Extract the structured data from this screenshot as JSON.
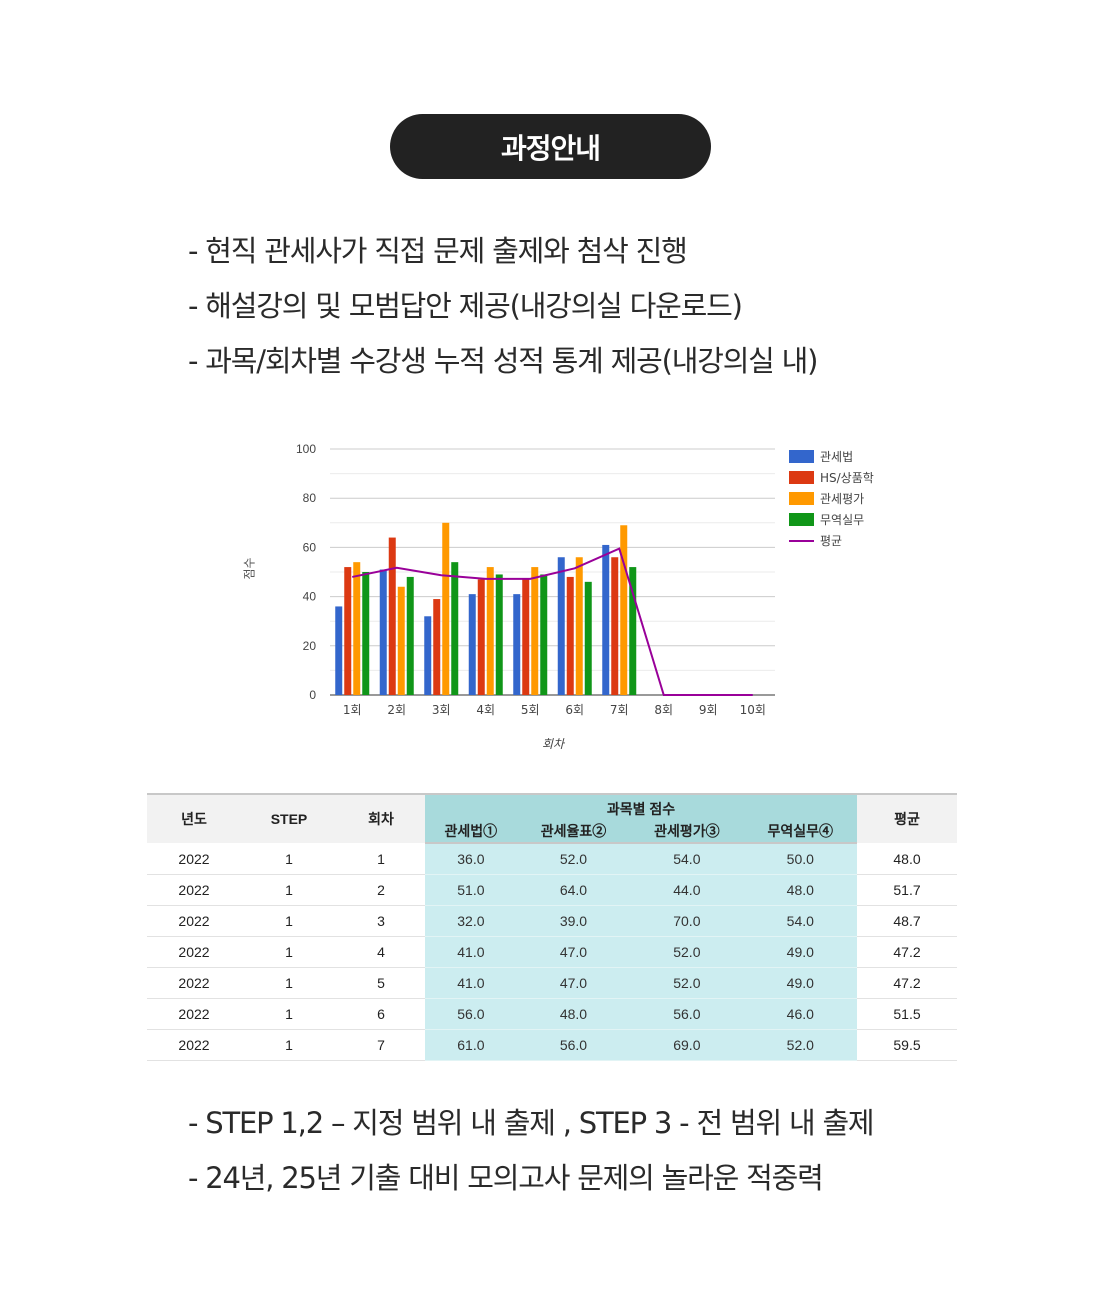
{
  "header": {
    "title": "과정안내"
  },
  "intro_bullets": [
    "- 현직 관세사가 직접 문제 출제와 첨삭 진행",
    "- 해설강의 및 모범답안 제공(내강의실 다운로드)",
    "- 과목/회차별 수강생 누적 성적 통계 제공(내강의실 내)"
  ],
  "chart_data": {
    "type": "bar",
    "title": "",
    "xlabel": "회차",
    "ylabel": "점수",
    "ylim": [
      0,
      100
    ],
    "yticks": [
      0,
      20,
      40,
      60,
      80,
      100
    ],
    "grid": true,
    "legend_position": "right",
    "categories": [
      "1회",
      "2회",
      "3회",
      "4회",
      "5회",
      "6회",
      "7회",
      "8회",
      "9회",
      "10회"
    ],
    "series": [
      {
        "name": "관세법",
        "type": "bar",
        "color": "#3366cc",
        "values": [
          36,
          51,
          32,
          41,
          41,
          56,
          61,
          0,
          0,
          0
        ]
      },
      {
        "name": "HS/상품학",
        "type": "bar",
        "color": "#dc3912",
        "values": [
          52,
          64,
          39,
          47,
          47,
          48,
          56,
          0,
          0,
          0
        ]
      },
      {
        "name": "관세평가",
        "type": "bar",
        "color": "#ff9900",
        "values": [
          54,
          44,
          70,
          52,
          52,
          56,
          69,
          0,
          0,
          0
        ]
      },
      {
        "name": "무역실무",
        "type": "bar",
        "color": "#109618",
        "values": [
          50,
          48,
          54,
          49,
          49,
          46,
          52,
          0,
          0,
          0
        ]
      },
      {
        "name": "평균",
        "type": "line",
        "color": "#990099",
        "values": [
          48.0,
          51.7,
          48.7,
          47.2,
          47.2,
          51.5,
          59.5,
          0,
          0,
          0
        ]
      }
    ]
  },
  "table": {
    "headers": {
      "year": "년도",
      "step": "STEP",
      "round": "회차",
      "group": "과목별 점수",
      "subjects": [
        "관세법①",
        "관세율표②",
        "관세평가③",
        "무역실무④"
      ],
      "avg": "평균"
    },
    "rows": [
      [
        "2022",
        "1",
        "1",
        "36.0",
        "52.0",
        "54.0",
        "50.0",
        "48.0"
      ],
      [
        "2022",
        "1",
        "2",
        "51.0",
        "64.0",
        "44.0",
        "48.0",
        "51.7"
      ],
      [
        "2022",
        "1",
        "3",
        "32.0",
        "39.0",
        "70.0",
        "54.0",
        "48.7"
      ],
      [
        "2022",
        "1",
        "4",
        "41.0",
        "47.0",
        "52.0",
        "49.0",
        "47.2"
      ],
      [
        "2022",
        "1",
        "5",
        "41.0",
        "47.0",
        "52.0",
        "49.0",
        "47.2"
      ],
      [
        "2022",
        "1",
        "6",
        "56.0",
        "48.0",
        "56.0",
        "46.0",
        "51.5"
      ],
      [
        "2022",
        "1",
        "7",
        "61.0",
        "56.0",
        "69.0",
        "52.0",
        "59.5"
      ]
    ]
  },
  "outro_bullets": [
    "- STEP 1,2 – 지정 범위 내 출제 , STEP 3 -  전 범위 내 출제",
    "- 24년, 25년 기출 대비 모의고사 문제의 놀라운 적중력"
  ]
}
